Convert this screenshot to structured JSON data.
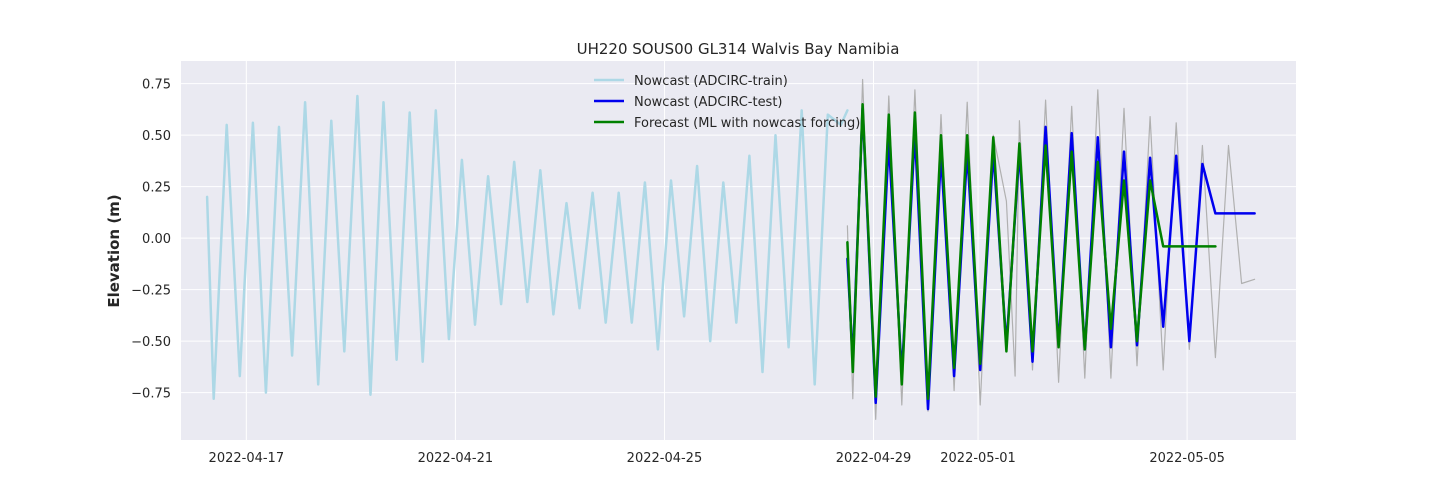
{
  "chart_data": {
    "type": "line",
    "title": "UH220 SOUS00 GL314 Walvis Bay Namibia",
    "xlabel": "",
    "ylabel": "Elevation (m)",
    "x_axis": {
      "type": "date",
      "range": [
        "2022-04-15T18:00",
        "2022-05-07T02:00"
      ],
      "ticks": [
        "2022-04-17",
        "2022-04-21",
        "2022-04-25",
        "2022-04-29",
        "2022-05-01",
        "2022-05-05"
      ]
    },
    "ylim": [
      -0.98,
      0.86
    ],
    "yticks": [
      0.75,
      0.5,
      0.25,
      0.0,
      -0.25,
      -0.5,
      -0.75
    ],
    "ytick_labels": [
      "0.75",
      "0.50",
      "0.25",
      "0.00",
      "−0.25",
      "−0.50",
      "−0.75"
    ],
    "grid": true,
    "legend_position": "top-center",
    "background_color": "#eaeaf2",
    "series": [
      {
        "name": "",
        "role": "observations",
        "color": "#b0b0b0",
        "x": [
          "2022-04-28T12:00",
          "2022-04-28T14:30",
          "2022-04-28T19:00",
          "2022-04-29T01:00",
          "2022-04-29T07:00",
          "2022-04-29T13:00",
          "2022-04-29T19:00",
          "2022-04-30T01:00",
          "2022-04-30T07:00",
          "2022-04-30T13:00",
          "2022-04-30T19:00",
          "2022-05-01T01:00",
          "2022-05-01T07:00",
          "2022-05-01T13:00",
          "2022-05-01T17:00",
          "2022-05-01T19:00",
          "2022-05-02T01:00",
          "2022-05-02T07:00",
          "2022-05-02T13:00",
          "2022-05-02T19:00",
          "2022-05-03T01:00",
          "2022-05-03T07:00",
          "2022-05-03T13:00",
          "2022-05-03T19:00",
          "2022-05-04T01:00",
          "2022-05-04T07:00",
          "2022-05-04T13:00",
          "2022-05-04T19:00",
          "2022-05-05T01:00",
          "2022-05-05T07:00",
          "2022-05-05T13:00",
          "2022-05-05T19:00",
          "2022-05-06T01:00",
          "2022-05-06T07:00"
        ],
        "y": [
          0.06,
          -0.78,
          0.77,
          -0.88,
          0.69,
          -0.81,
          0.72,
          -0.84,
          0.6,
          -0.74,
          0.66,
          -0.81,
          0.5,
          0.18,
          -0.67,
          0.57,
          -0.64,
          0.67,
          -0.7,
          0.64,
          -0.68,
          0.72,
          -0.68,
          0.63,
          -0.62,
          0.59,
          -0.64,
          0.56,
          -0.54,
          0.45,
          -0.58,
          0.45,
          -0.22,
          -0.2
        ]
      },
      {
        "name": "Nowcast (ADCIRC-train)",
        "color": "#add8e6",
        "x": [
          "2022-04-16T06:00",
          "2022-04-16T09:00",
          "2022-04-16T15:00",
          "2022-04-16T21:00",
          "2022-04-17T03:00",
          "2022-04-17T09:00",
          "2022-04-17T15:00",
          "2022-04-17T21:00",
          "2022-04-18T03:00",
          "2022-04-18T09:00",
          "2022-04-18T15:00",
          "2022-04-18T21:00",
          "2022-04-19T03:00",
          "2022-04-19T09:00",
          "2022-04-19T15:00",
          "2022-04-19T21:00",
          "2022-04-20T03:00",
          "2022-04-20T09:00",
          "2022-04-20T15:00",
          "2022-04-20T21:00",
          "2022-04-21T03:00",
          "2022-04-21T09:00",
          "2022-04-21T15:00",
          "2022-04-21T21:00",
          "2022-04-22T03:00",
          "2022-04-22T09:00",
          "2022-04-22T15:00",
          "2022-04-22T21:00",
          "2022-04-23T03:00",
          "2022-04-23T09:00",
          "2022-04-23T15:00",
          "2022-04-23T21:00",
          "2022-04-24T03:00",
          "2022-04-24T09:00",
          "2022-04-24T15:00",
          "2022-04-24T21:00",
          "2022-04-25T03:00",
          "2022-04-25T09:00",
          "2022-04-25T15:00",
          "2022-04-25T21:00",
          "2022-04-26T03:00",
          "2022-04-26T09:00",
          "2022-04-26T15:00",
          "2022-04-26T21:00",
          "2022-04-27T03:00",
          "2022-04-27T09:00",
          "2022-04-27T15:00",
          "2022-04-27T21:00",
          "2022-04-28T03:00",
          "2022-04-28T09:00",
          "2022-04-28T12:00"
        ],
        "y": [
          0.2,
          -0.78,
          0.55,
          -0.67,
          0.56,
          -0.75,
          0.54,
          -0.57,
          0.66,
          -0.71,
          0.57,
          -0.55,
          0.69,
          -0.76,
          0.66,
          -0.59,
          0.61,
          -0.6,
          0.62,
          -0.49,
          0.38,
          -0.42,
          0.3,
          -0.32,
          0.37,
          -0.31,
          0.33,
          -0.37,
          0.17,
          -0.34,
          0.22,
          -0.41,
          0.22,
          -0.41,
          0.27,
          -0.54,
          0.28,
          -0.38,
          0.35,
          -0.5,
          0.27,
          -0.41,
          0.4,
          -0.65,
          0.5,
          -0.53,
          0.62,
          -0.71,
          0.6,
          0.55,
          0.62
        ]
      },
      {
        "name": "Nowcast (ADCIRC-test)",
        "color": "#0000ee",
        "x": [
          "2022-04-28T12:00",
          "2022-04-28T14:30",
          "2022-04-28T19:00",
          "2022-04-29T01:00",
          "2022-04-29T07:00",
          "2022-04-29T13:00",
          "2022-04-29T19:00",
          "2022-04-30T01:00",
          "2022-04-30T07:00",
          "2022-04-30T13:00",
          "2022-04-30T19:00",
          "2022-05-01T01:00",
          "2022-05-01T07:00",
          "2022-05-01T13:00",
          "2022-05-01T19:00",
          "2022-05-02T01:00",
          "2022-05-02T07:00",
          "2022-05-02T13:00",
          "2022-05-02T19:00",
          "2022-05-03T01:00",
          "2022-05-03T07:00",
          "2022-05-03T13:00",
          "2022-05-03T19:00",
          "2022-05-04T01:00",
          "2022-05-04T07:00",
          "2022-05-04T13:00",
          "2022-05-04T19:00",
          "2022-05-05T01:00",
          "2022-05-05T07:00",
          "2022-05-05T13:00",
          "2022-05-05T19:00",
          "2022-05-06T01:00",
          "2022-05-06T07:00"
        ],
        "y": [
          -0.1,
          -0.6,
          0.63,
          -0.8,
          0.47,
          -0.66,
          0.51,
          -0.83,
          0.41,
          -0.67,
          0.42,
          -0.64,
          0.42,
          -0.52,
          0.42,
          -0.6,
          0.54,
          -0.52,
          0.51,
          -0.54,
          0.49,
          -0.53,
          0.42,
          -0.52,
          0.39,
          -0.43,
          0.4,
          -0.5,
          0.36,
          0.12,
          0.12,
          0.12,
          0.12
        ]
      },
      {
        "name": "Forecast (ML with nowcast forcing)",
        "color": "#008000",
        "x": [
          "2022-04-28T12:00",
          "2022-04-28T14:30",
          "2022-04-28T19:00",
          "2022-04-29T01:00",
          "2022-04-29T07:00",
          "2022-04-29T13:00",
          "2022-04-29T19:00",
          "2022-04-30T01:00",
          "2022-04-30T07:00",
          "2022-04-30T13:00",
          "2022-04-30T19:00",
          "2022-05-01T01:00",
          "2022-05-01T07:00",
          "2022-05-01T13:00",
          "2022-05-01T19:00",
          "2022-05-02T01:00",
          "2022-05-02T07:00",
          "2022-05-02T13:00",
          "2022-05-02T19:00",
          "2022-05-03T01:00",
          "2022-05-03T07:00",
          "2022-05-03T13:00",
          "2022-05-03T19:00",
          "2022-05-04T01:00",
          "2022-05-04T07:00",
          "2022-05-04T13:00",
          "2022-05-04T19:00",
          "2022-05-05T01:00",
          "2022-05-05T07:00",
          "2022-05-05T13:00"
        ],
        "y": [
          -0.02,
          -0.65,
          0.65,
          -0.77,
          0.6,
          -0.71,
          0.61,
          -0.78,
          0.5,
          -0.63,
          0.5,
          -0.61,
          0.49,
          -0.55,
          0.46,
          -0.55,
          0.45,
          -0.53,
          0.42,
          -0.54,
          0.37,
          -0.44,
          0.28,
          -0.5,
          0.28,
          -0.04,
          -0.04,
          -0.04,
          -0.04,
          -0.04
        ]
      }
    ]
  }
}
